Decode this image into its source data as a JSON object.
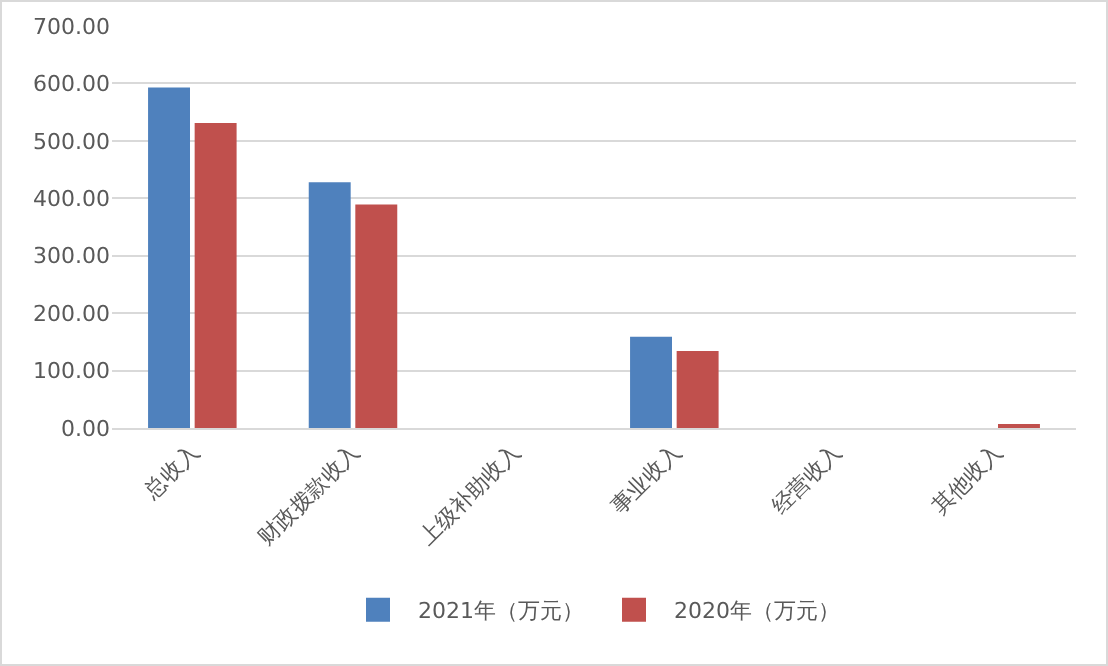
{
  "chart_data": {
    "type": "bar",
    "categories": [
      "总收入",
      "财政拨款收入",
      "上级补助收入",
      "事业收入",
      "经营收入",
      "其他收入"
    ],
    "series": [
      {
        "name": "2021年（万元）",
        "color": "#4f81bd",
        "values": [
          593,
          428,
          0,
          159,
          0,
          0
        ]
      },
      {
        "name": "2020年（万元）",
        "color": "#c0504d",
        "values": [
          531,
          389,
          0,
          134,
          0,
          5
        ]
      }
    ],
    "ylim": [
      0,
      700
    ],
    "yticks": [
      {
        "value": 0,
        "label": "0.00"
      },
      {
        "value": 100,
        "label": "100.00"
      },
      {
        "value": 200,
        "label": "200.00"
      },
      {
        "value": 300,
        "label": "300.00"
      },
      {
        "value": 400,
        "label": "400.00"
      },
      {
        "value": 500,
        "label": "500.00"
      },
      {
        "value": 600,
        "label": "600.00"
      },
      {
        "value": 700,
        "label": "700.00"
      }
    ],
    "grid": "y",
    "legend": "bottom"
  }
}
